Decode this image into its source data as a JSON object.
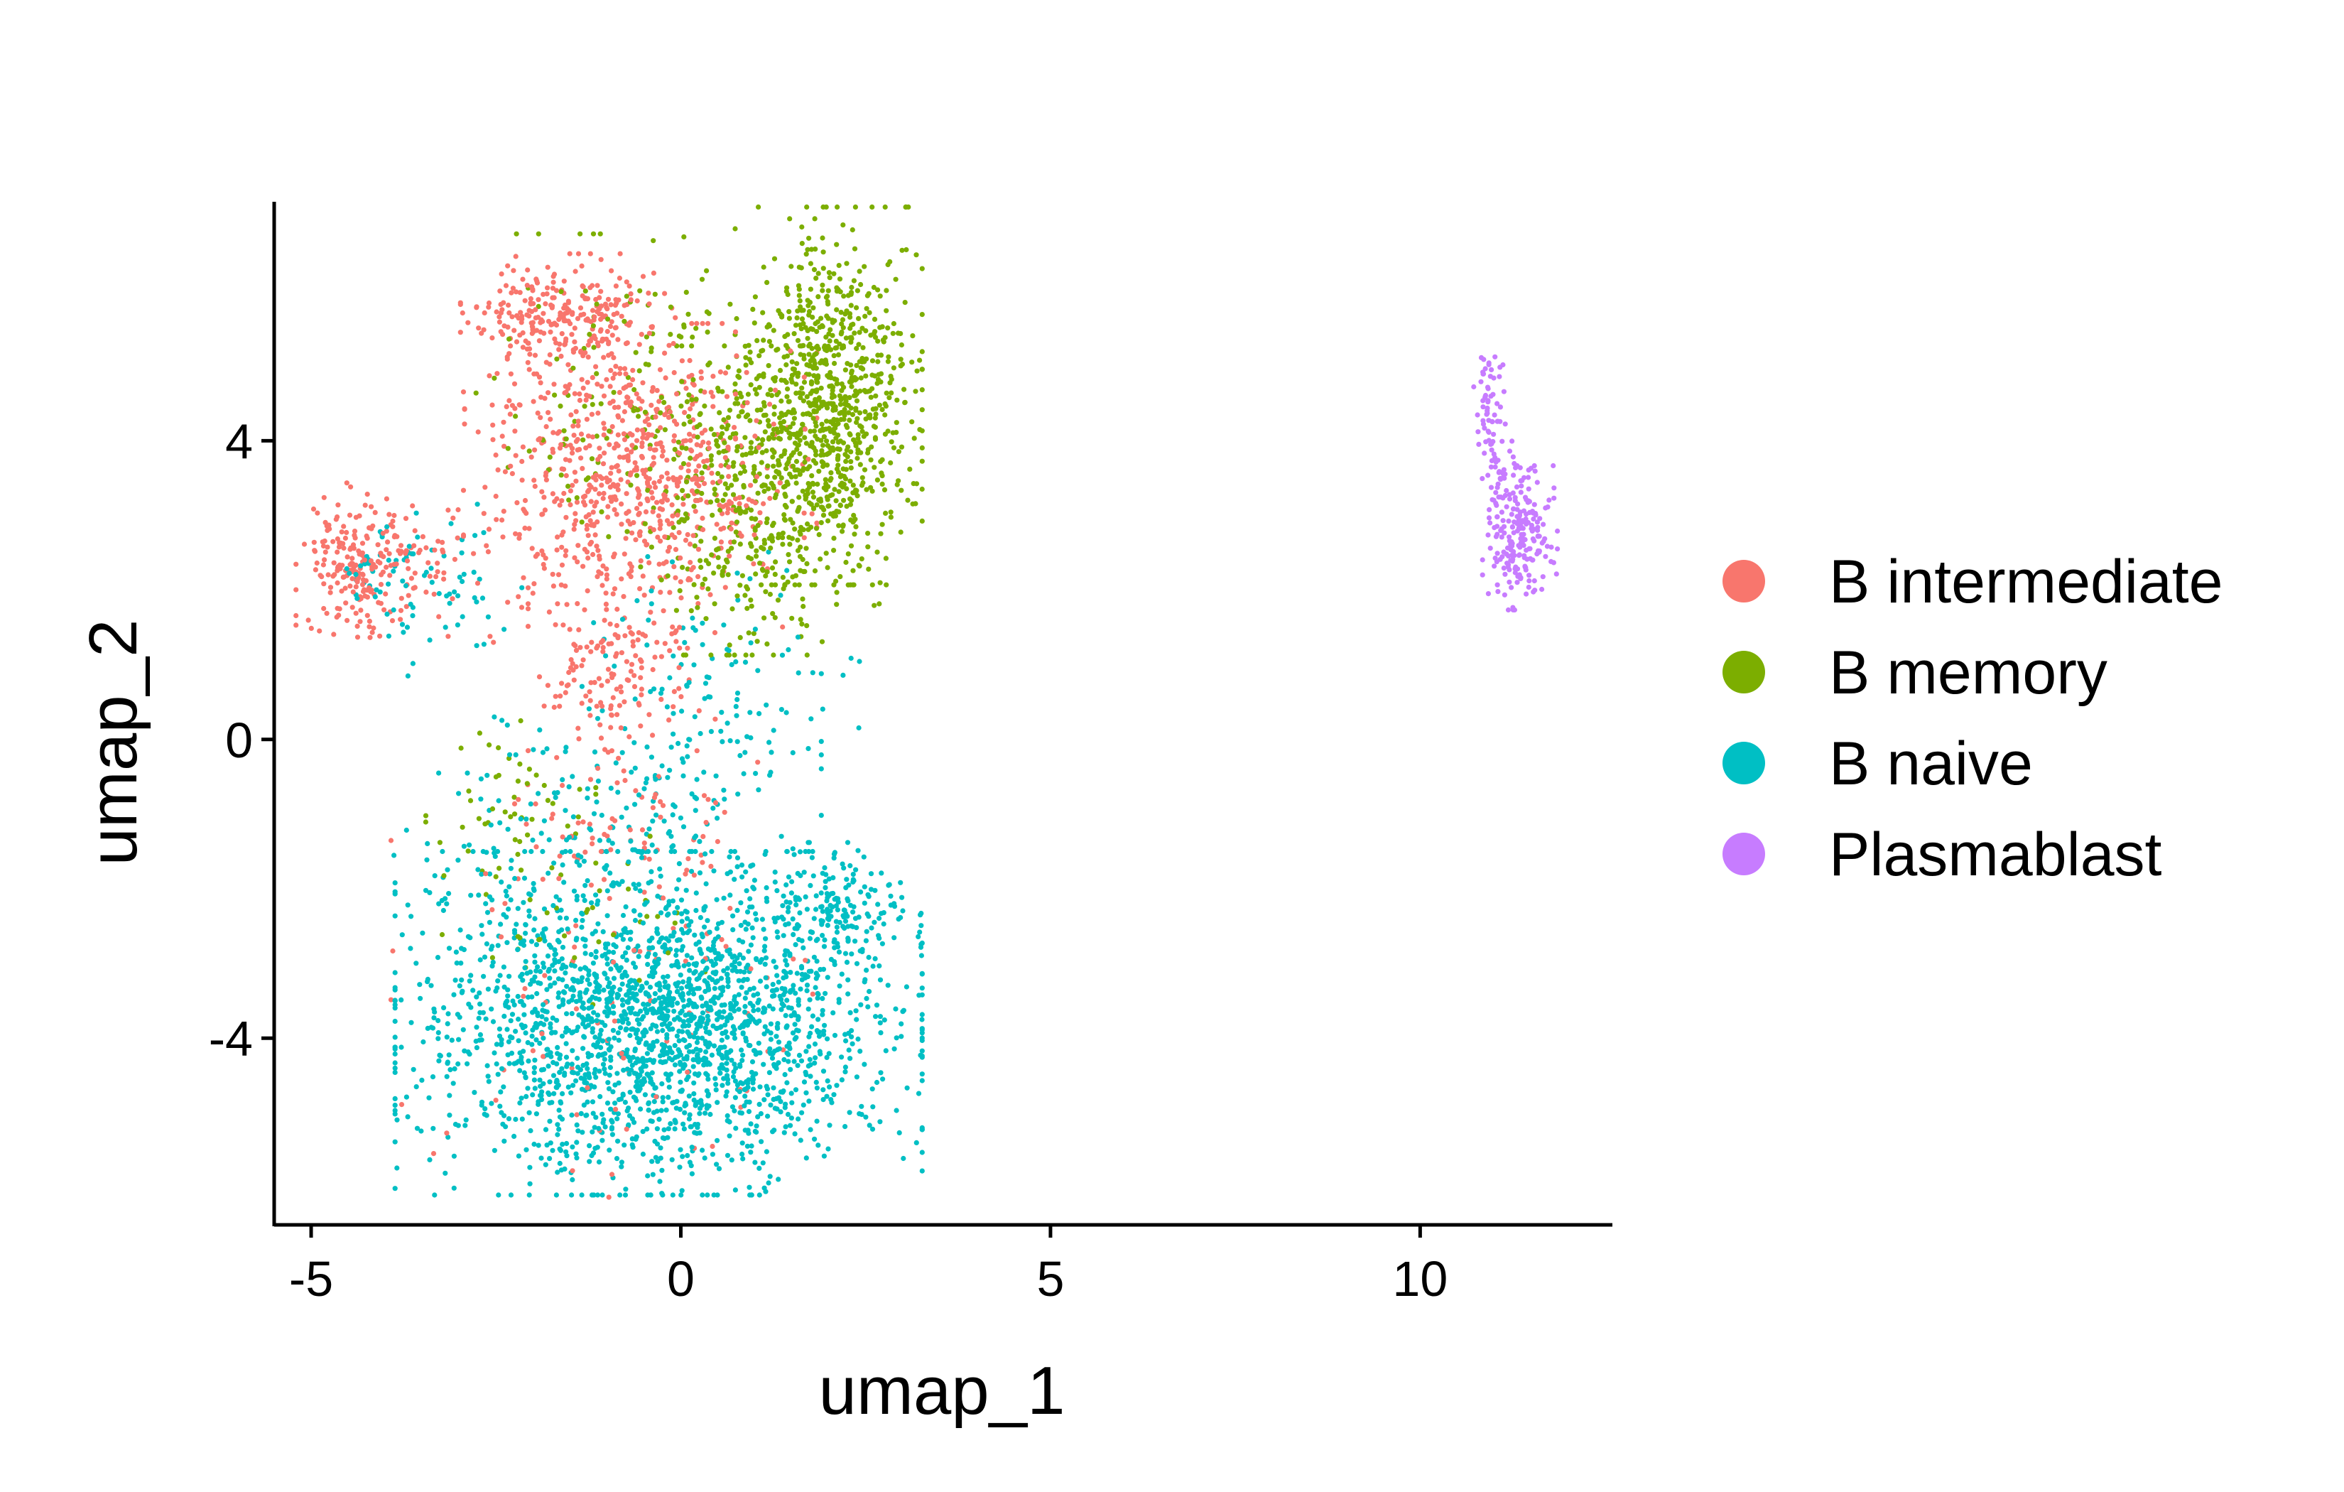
{
  "chart_data": {
    "type": "scatter",
    "xlabel": "umap_1",
    "ylabel": "umap_2",
    "xlim": [
      -5.5,
      12.6
    ],
    "ylim": [
      -6.5,
      7.2
    ],
    "xticks": [
      -5,
      0,
      5,
      10
    ],
    "yticks": [
      -4,
      0,
      4
    ],
    "xtick_labels": [
      "-5",
      "0",
      "5",
      "10"
    ],
    "ytick_labels": [
      "-4",
      "0",
      "4"
    ],
    "grid": false,
    "legend_position": "right",
    "series": [
      {
        "name": "B intermediate",
        "color": "#F8766D",
        "regions": [
          {
            "center": [
              -1.6,
              5.7
            ],
            "spread": [
              0.6,
              0.35
            ],
            "count": 260
          },
          {
            "center": [
              -1.1,
              3.6
            ],
            "spread": [
              0.8,
              1.0
            ],
            "count": 420
          },
          {
            "center": [
              0.0,
              3.5
            ],
            "spread": [
              0.8,
              0.9
            ],
            "count": 330
          },
          {
            "center": [
              -4.4,
              2.4
            ],
            "spread": [
              0.35,
              0.45
            ],
            "count": 200
          },
          {
            "center": [
              -3.5,
              2.3
            ],
            "spread": [
              0.4,
              0.4
            ],
            "count": 50
          },
          {
            "center": [
              -0.8,
              0.8
            ],
            "spread": [
              0.55,
              0.6
            ],
            "count": 150
          },
          {
            "center": [
              -0.8,
              -1.2
            ],
            "spread": [
              0.8,
              0.6
            ],
            "count": 70
          },
          {
            "center": [
              -0.7,
              -3.6
            ],
            "spread": [
              1.4,
              1.1
            ],
            "count": 80
          }
        ]
      },
      {
        "name": "B memory",
        "color": "#7CAE00",
        "regions": [
          {
            "center": [
              2.0,
              4.6
            ],
            "spread": [
              0.55,
              1.1
            ],
            "count": 820
          },
          {
            "center": [
              1.0,
              3.2
            ],
            "spread": [
              0.75,
              0.9
            ],
            "count": 420
          },
          {
            "center": [
              -0.7,
              4.7
            ],
            "spread": [
              0.9,
              0.9
            ],
            "count": 140
          },
          {
            "center": [
              -2.3,
              -0.9
            ],
            "spread": [
              0.5,
              0.5
            ],
            "count": 45
          },
          {
            "center": [
              -1.4,
              -2.4
            ],
            "spread": [
              1.0,
              0.5
            ],
            "count": 40
          }
        ]
      },
      {
        "name": "B naive",
        "color": "#00BFC4",
        "regions": [
          {
            "center": [
              -0.3,
              -3.8
            ],
            "spread": [
              1.55,
              1.0
            ],
            "count": 2200
          },
          {
            "center": [
              2.1,
              -2.3
            ],
            "spread": [
              0.5,
              0.4
            ],
            "count": 170
          },
          {
            "center": [
              -0.4,
              -0.8
            ],
            "spread": [
              1.0,
              0.8
            ],
            "count": 160
          },
          {
            "center": [
              0.6,
              0.9
            ],
            "spread": [
              0.8,
              0.7
            ],
            "count": 90
          },
          {
            "center": [
              -3.3,
              2.0
            ],
            "spread": [
              0.5,
              0.5
            ],
            "count": 60
          },
          {
            "center": [
              -4.2,
              2.2
            ],
            "spread": [
              0.3,
              0.3
            ],
            "count": 25
          },
          {
            "center": [
              -2.5,
              -1.6
            ],
            "spread": [
              0.6,
              0.5
            ],
            "count": 40
          }
        ]
      },
      {
        "name": "Plasmablast",
        "color": "#C77CFF",
        "regions": [
          {
            "center": [
              11.35,
              2.7
            ],
            "spread": [
              0.22,
              0.42
            ],
            "count": 200
          },
          {
            "center": [
              10.95,
              4.4
            ],
            "spread": [
              0.1,
              0.45
            ],
            "count": 60
          },
          {
            "center": [
              11.1,
              3.5
            ],
            "spread": [
              0.15,
              0.25
            ],
            "count": 40
          }
        ]
      }
    ]
  }
}
